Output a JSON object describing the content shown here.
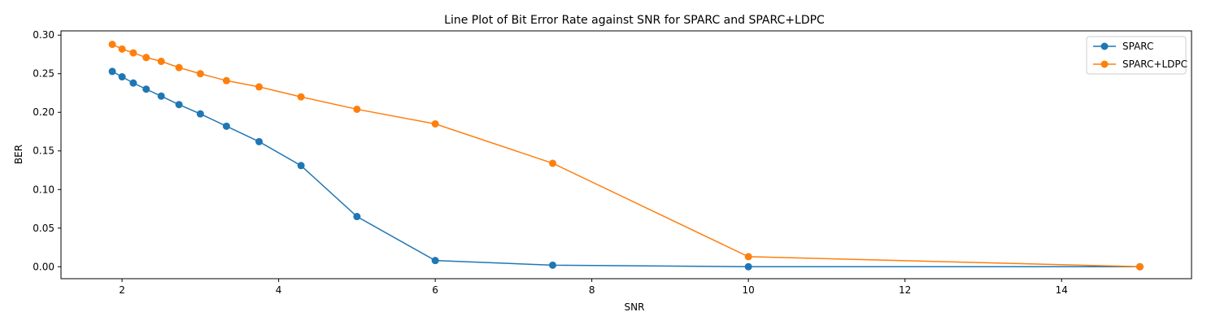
{
  "chart_data": {
    "type": "line",
    "title": "Line Plot of Bit Error Rate against SNR for SPARC and SPARC+LDPC",
    "xlabel": "SNR",
    "ylabel": "BER",
    "xlim": [
      1.22,
      15.66
    ],
    "ylim": [
      -0.0155,
      0.3055
    ],
    "x_ticks": [
      2,
      4,
      6,
      8,
      10,
      12,
      14
    ],
    "x_tick_labels": [
      "2",
      "4",
      "6",
      "8",
      "10",
      "12",
      "14"
    ],
    "y_ticks": [
      0,
      0.05,
      0.1,
      0.15,
      0.2,
      0.25,
      0.3
    ],
    "y_tick_labels": [
      "0.00",
      "0.05",
      "0.10",
      "0.15",
      "0.20",
      "0.25",
      "0.30"
    ],
    "grid": false,
    "legend_position": "top-right",
    "series": [
      {
        "name": "SPARC",
        "color": "#1f77b4",
        "marker": "circle",
        "x": [
          1.875,
          2.0,
          2.143,
          2.308,
          2.5,
          2.727,
          3.0,
          3.333,
          3.75,
          4.286,
          5.0,
          6.0,
          7.5,
          10.0,
          15.0
        ],
        "y": [
          0.253,
          0.246,
          0.238,
          0.23,
          0.221,
          0.21,
          0.198,
          0.182,
          0.162,
          0.131,
          0.065,
          0.008,
          0.002,
          0.0,
          0.0
        ]
      },
      {
        "name": "SPARC+LDPC",
        "color": "#ff7f0e",
        "marker": "circle",
        "x": [
          1.875,
          2.0,
          2.143,
          2.308,
          2.5,
          2.727,
          3.0,
          3.333,
          3.75,
          4.286,
          5.0,
          6.0,
          7.5,
          10.0,
          15.0
        ],
        "y": [
          0.288,
          0.282,
          0.277,
          0.271,
          0.266,
          0.258,
          0.25,
          0.241,
          0.233,
          0.22,
          0.204,
          0.185,
          0.134,
          0.013,
          0.0
        ]
      }
    ]
  }
}
